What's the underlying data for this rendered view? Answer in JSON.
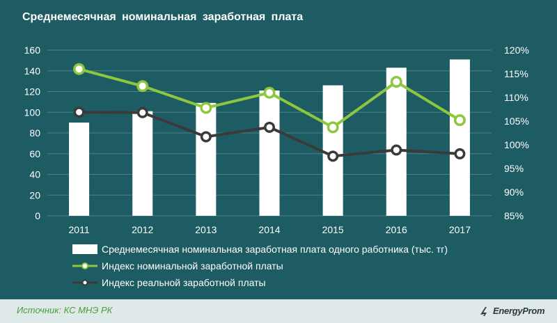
{
  "header": {
    "title": "Среднемесячная  номинальная  заработная  плата"
  },
  "chart_data": {
    "type": "bar+line",
    "title": "Среднемесячная  номинальная  заработная  плата",
    "categories": [
      "2011",
      "2012",
      "2013",
      "2014",
      "2015",
      "2016",
      "2017"
    ],
    "left_axis": {
      "min": 0,
      "max": 160,
      "ticks": [
        "0",
        "20",
        "40",
        "60",
        "80",
        "100",
        "120",
        "140",
        "160"
      ]
    },
    "right_axis": {
      "min": 85,
      "max": 120,
      "ticks": [
        "85%",
        "90%",
        "95%",
        "100%",
        "105%",
        "110%",
        "115%",
        "120%"
      ]
    },
    "series": [
      {
        "name": "Среднемесячная номинальная заработная плата одного работника (тыс. тг)",
        "type": "bar",
        "axis": "left",
        "values": [
          90,
          101,
          109,
          121,
          126,
          143,
          151
        ]
      },
      {
        "name": "Индекс номинальной заработной платы",
        "type": "line",
        "axis": "right",
        "values": [
          116.0,
          112.4,
          107.8,
          111.0,
          103.7,
          113.3,
          105.2
        ]
      },
      {
        "name": "Индекс реальной заработной платы",
        "type": "line",
        "axis": "right",
        "values": [
          106.9,
          106.8,
          101.7,
          103.7,
          97.6,
          98.9,
          98.1
        ]
      }
    ],
    "grid": true,
    "legend_position": "bottom"
  },
  "footer": {
    "source": "Источник: КС МНЭ РК",
    "brand": "EnergyProm"
  },
  "colors": {
    "background": "#1e5c64",
    "bar": "#ffffff",
    "nominal": "#8dc63f",
    "real": "#3a3a3a",
    "grid": "#4f8087",
    "footer": "#dfe9e9"
  }
}
